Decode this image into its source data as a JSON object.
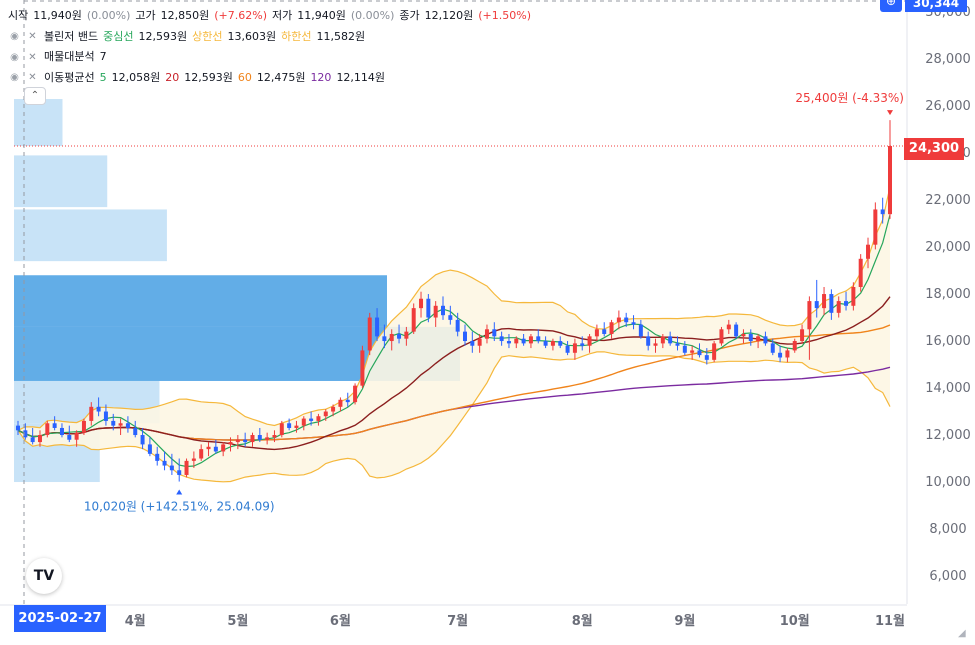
{
  "legend": {
    "ohlc": {
      "open_label": "시작",
      "open_value": "11,940원",
      "open_change": "(0.00%)",
      "high_label": "고가",
      "high_value": "12,850원",
      "high_change": "(+7.62%)",
      "low_label": "저가",
      "low_value": "11,940원",
      "low_change": "(0.00%)",
      "close_label": "종가",
      "close_value": "12,120원",
      "close_change": "(+1.50%)"
    },
    "bollinger": {
      "label": "볼린저 밴드",
      "mid_label": "중심선",
      "mid_value": "12,593원",
      "upper_label": "상한선",
      "upper_value": "13,603원",
      "lower_label": "하한선",
      "lower_value": "11,582원"
    },
    "volume_profile": {
      "label": "매물대분석",
      "value": "7"
    },
    "ma": {
      "label": "이동평균선",
      "p5": "5",
      "v5": "12,058원",
      "p20": "20",
      "v20": "12,593원",
      "p60": "60",
      "v60": "12,475원",
      "p120": "120",
      "v120": "12,114원"
    }
  },
  "badges": {
    "top_price": "30,344",
    "current_price": "24,300",
    "crosshair_date": "2025-02-27"
  },
  "annotations": {
    "high": "25,400원 (-4.33%)",
    "low": "10,020원 (+142.51%, 25.04.09)"
  },
  "colors": {
    "up": "#ef3b3b",
    "down": "#2962ff",
    "ma5": "#26a65b",
    "ma20": "#8b1f1f",
    "ma60": "#f0841b",
    "ma120": "#7b2ba0",
    "bb_band": "#f5b83c",
    "bb_fill": "#fdf6e3",
    "vp_light": "#c5e1f7",
    "vp_dark": "#5aa9e6"
  },
  "chart_data": {
    "type": "candlestick",
    "y_axis": {
      "range": [
        4800,
        30500
      ],
      "ticks": [
        6000,
        8000,
        10000,
        12000,
        14000,
        16000,
        18000,
        20000,
        22000,
        24000,
        26000,
        28000,
        30000
      ],
      "tick_labels": [
        "6,000",
        "8,000",
        "10,000",
        "12,000",
        "14,000",
        "16,000",
        "18,000",
        "20,000",
        "22,000",
        "24,000",
        "26,000",
        "28,000",
        "30,000"
      ]
    },
    "x_axis": {
      "labels": [
        "4월",
        "5월",
        "6월",
        "7월",
        "8월",
        "9월",
        "10월",
        "11월"
      ]
    },
    "current_price": 24300,
    "volume_profile": [
      {
        "range": [
          24300,
          26300
        ],
        "level": 0.13
      },
      {
        "range": [
          21700,
          23900
        ],
        "level": 0.25
      },
      {
        "range": [
          19400,
          21600
        ],
        "level": 0.41
      },
      {
        "range": [
          16600,
          18800
        ],
        "level": 1.0
      },
      {
        "range": [
          14300,
          16600
        ],
        "level": 1.0
      },
      {
        "range": [
          12500,
          14300
        ],
        "level": 0.39
      },
      {
        "range": [
          10000,
          12500
        ],
        "level": 0.23
      }
    ],
    "ohlc": [
      [
        12400,
        12600,
        12000,
        12200
      ],
      [
        12200,
        12500,
        11800,
        11900
      ],
      [
        11900,
        12300,
        11600,
        11700
      ],
      [
        11700,
        12200,
        11500,
        12000
      ],
      [
        12000,
        12600,
        11900,
        12500
      ],
      [
        12500,
        12800,
        12200,
        12300
      ],
      [
        12300,
        12500,
        11900,
        12000
      ],
      [
        12000,
        12400,
        11700,
        11800
      ],
      [
        11800,
        12200,
        11500,
        12100
      ],
      [
        12100,
        12700,
        12000,
        12600
      ],
      [
        12600,
        13400,
        12400,
        13200
      ],
      [
        13200,
        13600,
        12800,
        13000
      ],
      [
        13000,
        13300,
        12400,
        12600
      ],
      [
        12600,
        12900,
        12200,
        12400
      ],
      [
        12400,
        12700,
        12000,
        12500
      ],
      [
        12500,
        12800,
        12100,
        12300
      ],
      [
        12300,
        12600,
        11900,
        12000
      ],
      [
        12000,
        12300,
        11400,
        11600
      ],
      [
        11600,
        11900,
        11100,
        11200
      ],
      [
        11200,
        11500,
        10700,
        10900
      ],
      [
        10900,
        11300,
        10500,
        10700
      ],
      [
        10700,
        11200,
        10300,
        10500
      ],
      [
        10500,
        11000,
        10020,
        10300
      ],
      [
        10300,
        11000,
        10200,
        10900
      ],
      [
        10900,
        11300,
        10600,
        11000
      ],
      [
        11000,
        11600,
        10900,
        11400
      ],
      [
        11400,
        11700,
        11100,
        11500
      ],
      [
        11500,
        11800,
        11200,
        11300
      ],
      [
        11300,
        11700,
        11100,
        11600
      ],
      [
        11600,
        11900,
        11300,
        11700
      ],
      [
        11700,
        12000,
        11400,
        11800
      ],
      [
        11800,
        12100,
        11500,
        11700
      ],
      [
        11700,
        12100,
        11500,
        12000
      ],
      [
        12000,
        12300,
        11700,
        11800
      ],
      [
        11800,
        12100,
        11600,
        11900
      ],
      [
        11900,
        12200,
        11700,
        12000
      ],
      [
        12000,
        12600,
        11900,
        12500
      ],
      [
        12500,
        12700,
        12200,
        12300
      ],
      [
        12300,
        12600,
        12100,
        12400
      ],
      [
        12400,
        12800,
        12200,
        12700
      ],
      [
        12700,
        13000,
        12400,
        12600
      ],
      [
        12600,
        12900,
        12400,
        12800
      ],
      [
        12800,
        13100,
        12600,
        13000
      ],
      [
        13000,
        13300,
        12800,
        13200
      ],
      [
        13200,
        13600,
        13000,
        13500
      ],
      [
        13500,
        13800,
        13200,
        13400
      ],
      [
        13400,
        14200,
        13300,
        14100
      ],
      [
        14100,
        15800,
        14000,
        15600
      ],
      [
        15600,
        17200,
        15400,
        17000
      ],
      [
        17000,
        17400,
        16000,
        16200
      ],
      [
        16200,
        16700,
        15700,
        16000
      ],
      [
        16000,
        16500,
        15600,
        16300
      ],
      [
        16300,
        16700,
        15900,
        16100
      ],
      [
        16100,
        16600,
        15800,
        16400
      ],
      [
        16400,
        17600,
        16300,
        17400
      ],
      [
        17400,
        18100,
        17000,
        17800
      ],
      [
        17800,
        18000,
        16800,
        17000
      ],
      [
        17000,
        17700,
        16600,
        17500
      ],
      [
        17500,
        17900,
        16900,
        17100
      ],
      [
        17100,
        17500,
        16700,
        16900
      ],
      [
        16900,
        17200,
        16200,
        16400
      ],
      [
        16400,
        16700,
        15800,
        16000
      ],
      [
        16000,
        16400,
        15500,
        15800
      ],
      [
        15800,
        16300,
        15500,
        16100
      ],
      [
        16100,
        16700,
        15900,
        16500
      ],
      [
        16500,
        16800,
        16000,
        16200
      ],
      [
        16200,
        16400,
        15800,
        16000
      ],
      [
        16000,
        16300,
        15700,
        15900
      ],
      [
        15900,
        16200,
        15700,
        16100
      ],
      [
        16100,
        16300,
        15800,
        15900
      ],
      [
        15900,
        16300,
        15700,
        16200
      ],
      [
        16200,
        16500,
        15900,
        16000
      ],
      [
        16000,
        16200,
        15700,
        15800
      ],
      [
        15800,
        16100,
        15600,
        16000
      ],
      [
        16000,
        16200,
        15700,
        15800
      ],
      [
        15800,
        16000,
        15400,
        15500
      ],
      [
        15500,
        16100,
        15200,
        15900
      ],
      [
        15900,
        16200,
        15600,
        15800
      ],
      [
        15800,
        16300,
        15500,
        16200
      ],
      [
        16200,
        16700,
        16000,
        16500
      ],
      [
        16500,
        16800,
        16200,
        16300
      ],
      [
        16300,
        16900,
        16100,
        16800
      ],
      [
        16800,
        17300,
        16500,
        17000
      ],
      [
        17000,
        17200,
        16600,
        16800
      ],
      [
        16800,
        17100,
        16500,
        16700
      ],
      [
        16700,
        16900,
        16100,
        16200
      ],
      [
        16200,
        16400,
        15600,
        15800
      ],
      [
        15800,
        16100,
        15500,
        15900
      ],
      [
        15900,
        16300,
        15700,
        16200
      ],
      [
        16200,
        16400,
        15800,
        15900
      ],
      [
        15900,
        16200,
        15600,
        15800
      ],
      [
        15800,
        16000,
        15400,
        15500
      ],
      [
        15500,
        15800,
        15200,
        15600
      ],
      [
        15600,
        15900,
        15300,
        15400
      ],
      [
        15400,
        15700,
        15000,
        15200
      ],
      [
        15200,
        16000,
        15100,
        15900
      ],
      [
        15900,
        16600,
        15800,
        16500
      ],
      [
        16500,
        16900,
        16300,
        16700
      ],
      [
        16700,
        16800,
        16100,
        16200
      ],
      [
        16200,
        16500,
        15900,
        16300
      ],
      [
        16300,
        16500,
        15800,
        16000
      ],
      [
        16000,
        16300,
        15700,
        16200
      ],
      [
        16200,
        16400,
        15800,
        15900
      ],
      [
        15900,
        16100,
        15400,
        15500
      ],
      [
        15500,
        15800,
        15100,
        15300
      ],
      [
        15300,
        15700,
        15100,
        15600
      ],
      [
        15600,
        16100,
        15500,
        16000
      ],
      [
        16000,
        16700,
        15900,
        16500
      ],
      [
        16500,
        17900,
        15200,
        17700
      ],
      [
        17700,
        18600,
        17000,
        17400
      ],
      [
        17400,
        18300,
        17100,
        18000
      ],
      [
        18000,
        18200,
        16900,
        17200
      ],
      [
        17200,
        17900,
        17000,
        17700
      ],
      [
        17700,
        18100,
        17300,
        17500
      ],
      [
        17500,
        18500,
        17300,
        18300
      ],
      [
        18300,
        19700,
        18100,
        19500
      ],
      [
        19500,
        20400,
        19100,
        20100
      ],
      [
        20100,
        21900,
        19900,
        21600
      ],
      [
        21600,
        22100,
        21000,
        21400
      ],
      [
        21400,
        25400,
        21200,
        24300
      ]
    ]
  }
}
